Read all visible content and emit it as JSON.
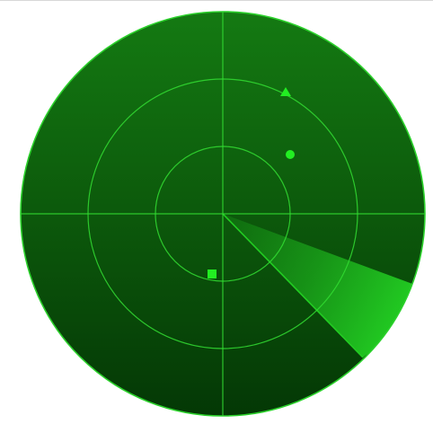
{
  "radar": {
    "colors": {
      "scope_top": "#147a12",
      "scope_bottom": "#043805",
      "grid": "#33dd33",
      "edge": "#2bd12b",
      "sweep": "#22cc22",
      "blip": "#22ee22",
      "page_bg": "#ffffff",
      "page_border": "#d8d8d8"
    },
    "grid": {
      "rings": 3,
      "crosshair": true
    },
    "sweep": {
      "present": true
    },
    "blips": [
      {
        "shape": "triangle",
        "icon": "triangle-blip"
      },
      {
        "shape": "circle",
        "icon": "circle-blip"
      },
      {
        "shape": "square",
        "icon": "square-blip"
      }
    ]
  }
}
